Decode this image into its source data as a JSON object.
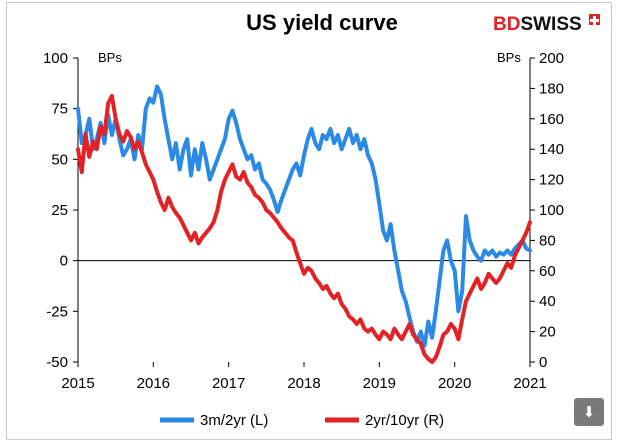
{
  "brand": {
    "name_red": "BD",
    "name_black": "SWISS",
    "color": "#e32226"
  },
  "download_icon": "download-icon",
  "chart_data": {
    "type": "line",
    "title": "US yield curve",
    "left_unit": "BPs",
    "right_unit": "BPs",
    "x_range": [
      2015,
      2021
    ],
    "x_ticks": [
      "2015",
      "2016",
      "2017",
      "2018",
      "2019",
      "2020",
      "2021"
    ],
    "ylim_left": [
      -50,
      100
    ],
    "ylim_right": [
      0,
      200
    ],
    "left_ticks": [
      "100",
      "75",
      "50",
      "25",
      "0",
      "-25",
      "-50"
    ],
    "right_ticks": [
      "200",
      "180",
      "160",
      "140",
      "120",
      "100",
      "80",
      "60",
      "40",
      "20",
      "0"
    ],
    "series": [
      {
        "name": "3m/2yr (L)",
        "axis": "left",
        "color": "#2a8ae6",
        "points": [
          [
            2015.0,
            75
          ],
          [
            2015.05,
            58
          ],
          [
            2015.1,
            62
          ],
          [
            2015.15,
            70
          ],
          [
            2015.2,
            55
          ],
          [
            2015.25,
            60
          ],
          [
            2015.3,
            68
          ],
          [
            2015.35,
            58
          ],
          [
            2015.4,
            72
          ],
          [
            2015.45,
            62
          ],
          [
            2015.5,
            70
          ],
          [
            2015.55,
            60
          ],
          [
            2015.6,
            52
          ],
          [
            2015.65,
            55
          ],
          [
            2015.7,
            60
          ],
          [
            2015.75,
            50
          ],
          [
            2015.8,
            62
          ],
          [
            2015.85,
            55
          ],
          [
            2015.9,
            75
          ],
          [
            2015.95,
            80
          ],
          [
            2016.0,
            78
          ],
          [
            2016.05,
            86
          ],
          [
            2016.1,
            82
          ],
          [
            2016.15,
            70
          ],
          [
            2016.2,
            60
          ],
          [
            2016.25,
            50
          ],
          [
            2016.3,
            58
          ],
          [
            2016.35,
            45
          ],
          [
            2016.4,
            55
          ],
          [
            2016.45,
            60
          ],
          [
            2016.5,
            42
          ],
          [
            2016.55,
            55
          ],
          [
            2016.6,
            45
          ],
          [
            2016.65,
            58
          ],
          [
            2016.7,
            50
          ],
          [
            2016.75,
            40
          ],
          [
            2016.8,
            45
          ],
          [
            2016.85,
            50
          ],
          [
            2016.9,
            55
          ],
          [
            2016.95,
            60
          ],
          [
            2017.0,
            70
          ],
          [
            2017.05,
            74
          ],
          [
            2017.1,
            68
          ],
          [
            2017.15,
            60
          ],
          [
            2017.2,
            55
          ],
          [
            2017.25,
            50
          ],
          [
            2017.3,
            52
          ],
          [
            2017.35,
            45
          ],
          [
            2017.4,
            48
          ],
          [
            2017.45,
            40
          ],
          [
            2017.5,
            38
          ],
          [
            2017.55,
            35
          ],
          [
            2017.6,
            30
          ],
          [
            2017.65,
            24
          ],
          [
            2017.7,
            30
          ],
          [
            2017.75,
            35
          ],
          [
            2017.8,
            40
          ],
          [
            2017.85,
            45
          ],
          [
            2017.9,
            48
          ],
          [
            2017.95,
            42
          ],
          [
            2018.0,
            52
          ],
          [
            2018.05,
            60
          ],
          [
            2018.1,
            65
          ],
          [
            2018.15,
            58
          ],
          [
            2018.2,
            55
          ],
          [
            2018.25,
            62
          ],
          [
            2018.3,
            60
          ],
          [
            2018.35,
            65
          ],
          [
            2018.4,
            58
          ],
          [
            2018.45,
            62
          ],
          [
            2018.5,
            55
          ],
          [
            2018.55,
            60
          ],
          [
            2018.6,
            65
          ],
          [
            2018.65,
            58
          ],
          [
            2018.7,
            62
          ],
          [
            2018.75,
            55
          ],
          [
            2018.8,
            60
          ],
          [
            2018.85,
            52
          ],
          [
            2018.9,
            48
          ],
          [
            2018.95,
            40
          ],
          [
            2019.0,
            28
          ],
          [
            2019.05,
            15
          ],
          [
            2019.1,
            10
          ],
          [
            2019.15,
            18
          ],
          [
            2019.2,
            5
          ],
          [
            2019.25,
            -5
          ],
          [
            2019.3,
            -15
          ],
          [
            2019.35,
            -20
          ],
          [
            2019.4,
            -28
          ],
          [
            2019.45,
            -35
          ],
          [
            2019.5,
            -40
          ],
          [
            2019.55,
            -35
          ],
          [
            2019.6,
            -42
          ],
          [
            2019.65,
            -30
          ],
          [
            2019.7,
            -38
          ],
          [
            2019.75,
            -25
          ],
          [
            2019.8,
            -10
          ],
          [
            2019.85,
            5
          ],
          [
            2019.9,
            10
          ],
          [
            2019.95,
            0
          ],
          [
            2020.0,
            -5
          ],
          [
            2020.05,
            -25
          ],
          [
            2020.1,
            -15
          ],
          [
            2020.15,
            22
          ],
          [
            2020.2,
            10
          ],
          [
            2020.25,
            5
          ],
          [
            2020.3,
            2
          ],
          [
            2020.35,
            0
          ],
          [
            2020.4,
            5
          ],
          [
            2020.45,
            3
          ],
          [
            2020.5,
            5
          ],
          [
            2020.55,
            2
          ],
          [
            2020.6,
            4
          ],
          [
            2020.65,
            3
          ],
          [
            2020.7,
            5
          ],
          [
            2020.75,
            3
          ],
          [
            2020.8,
            6
          ],
          [
            2020.85,
            8
          ],
          [
            2020.9,
            10
          ],
          [
            2020.95,
            6
          ],
          [
            2021.0,
            5
          ]
        ]
      },
      {
        "name": "2yr/10yr (R)",
        "axis": "right",
        "color": "#e32226",
        "points": [
          [
            2015.0,
            140
          ],
          [
            2015.05,
            125
          ],
          [
            2015.1,
            150
          ],
          [
            2015.15,
            135
          ],
          [
            2015.2,
            145
          ],
          [
            2015.25,
            140
          ],
          [
            2015.3,
            155
          ],
          [
            2015.35,
            150
          ],
          [
            2015.4,
            170
          ],
          [
            2015.45,
            175
          ],
          [
            2015.5,
            160
          ],
          [
            2015.55,
            150
          ],
          [
            2015.6,
            145
          ],
          [
            2015.65,
            152
          ],
          [
            2015.7,
            148
          ],
          [
            2015.75,
            140
          ],
          [
            2015.8,
            145
          ],
          [
            2015.85,
            138
          ],
          [
            2015.9,
            130
          ],
          [
            2015.95,
            125
          ],
          [
            2016.0,
            120
          ],
          [
            2016.05,
            112
          ],
          [
            2016.1,
            105
          ],
          [
            2016.15,
            100
          ],
          [
            2016.2,
            108
          ],
          [
            2016.25,
            102
          ],
          [
            2016.3,
            98
          ],
          [
            2016.35,
            95
          ],
          [
            2016.4,
            90
          ],
          [
            2016.45,
            85
          ],
          [
            2016.5,
            80
          ],
          [
            2016.55,
            85
          ],
          [
            2016.6,
            78
          ],
          [
            2016.65,
            82
          ],
          [
            2016.7,
            85
          ],
          [
            2016.75,
            88
          ],
          [
            2016.8,
            92
          ],
          [
            2016.85,
            100
          ],
          [
            2016.9,
            112
          ],
          [
            2016.95,
            120
          ],
          [
            2017.0,
            125
          ],
          [
            2017.05,
            130
          ],
          [
            2017.1,
            122
          ],
          [
            2017.15,
            120
          ],
          [
            2017.2,
            125
          ],
          [
            2017.25,
            118
          ],
          [
            2017.3,
            115
          ],
          [
            2017.35,
            110
          ],
          [
            2017.4,
            108
          ],
          [
            2017.45,
            105
          ],
          [
            2017.5,
            100
          ],
          [
            2017.55,
            98
          ],
          [
            2017.6,
            95
          ],
          [
            2017.65,
            92
          ],
          [
            2017.7,
            88
          ],
          [
            2017.75,
            85
          ],
          [
            2017.8,
            82
          ],
          [
            2017.85,
            80
          ],
          [
            2017.9,
            72
          ],
          [
            2017.95,
            65
          ],
          [
            2018.0,
            58
          ],
          [
            2018.05,
            62
          ],
          [
            2018.1,
            60
          ],
          [
            2018.15,
            55
          ],
          [
            2018.2,
            52
          ],
          [
            2018.25,
            48
          ],
          [
            2018.3,
            50
          ],
          [
            2018.35,
            45
          ],
          [
            2018.4,
            42
          ],
          [
            2018.45,
            45
          ],
          [
            2018.5,
            38
          ],
          [
            2018.55,
            35
          ],
          [
            2018.6,
            30
          ],
          [
            2018.65,
            28
          ],
          [
            2018.7,
            25
          ],
          [
            2018.75,
            28
          ],
          [
            2018.8,
            22
          ],
          [
            2018.85,
            20
          ],
          [
            2018.9,
            22
          ],
          [
            2018.95,
            18
          ],
          [
            2019.0,
            15
          ],
          [
            2019.05,
            20
          ],
          [
            2019.1,
            18
          ],
          [
            2019.15,
            15
          ],
          [
            2019.2,
            22
          ],
          [
            2019.25,
            18
          ],
          [
            2019.3,
            15
          ],
          [
            2019.35,
            20
          ],
          [
            2019.4,
            25
          ],
          [
            2019.45,
            18
          ],
          [
            2019.5,
            15
          ],
          [
            2019.55,
            12
          ],
          [
            2019.6,
            5
          ],
          [
            2019.65,
            2
          ],
          [
            2019.7,
            0
          ],
          [
            2019.75,
            3
          ],
          [
            2019.8,
            10
          ],
          [
            2019.85,
            18
          ],
          [
            2019.9,
            20
          ],
          [
            2019.95,
            25
          ],
          [
            2020.0,
            22
          ],
          [
            2020.05,
            15
          ],
          [
            2020.1,
            28
          ],
          [
            2020.15,
            40
          ],
          [
            2020.2,
            45
          ],
          [
            2020.25,
            50
          ],
          [
            2020.3,
            55
          ],
          [
            2020.35,
            48
          ],
          [
            2020.4,
            52
          ],
          [
            2020.45,
            58
          ],
          [
            2020.5,
            55
          ],
          [
            2020.55,
            52
          ],
          [
            2020.6,
            55
          ],
          [
            2020.65,
            60
          ],
          [
            2020.7,
            65
          ],
          [
            2020.75,
            62
          ],
          [
            2020.8,
            70
          ],
          [
            2020.85,
            75
          ],
          [
            2020.9,
            80
          ],
          [
            2020.95,
            85
          ],
          [
            2021.0,
            92
          ]
        ]
      }
    ]
  }
}
